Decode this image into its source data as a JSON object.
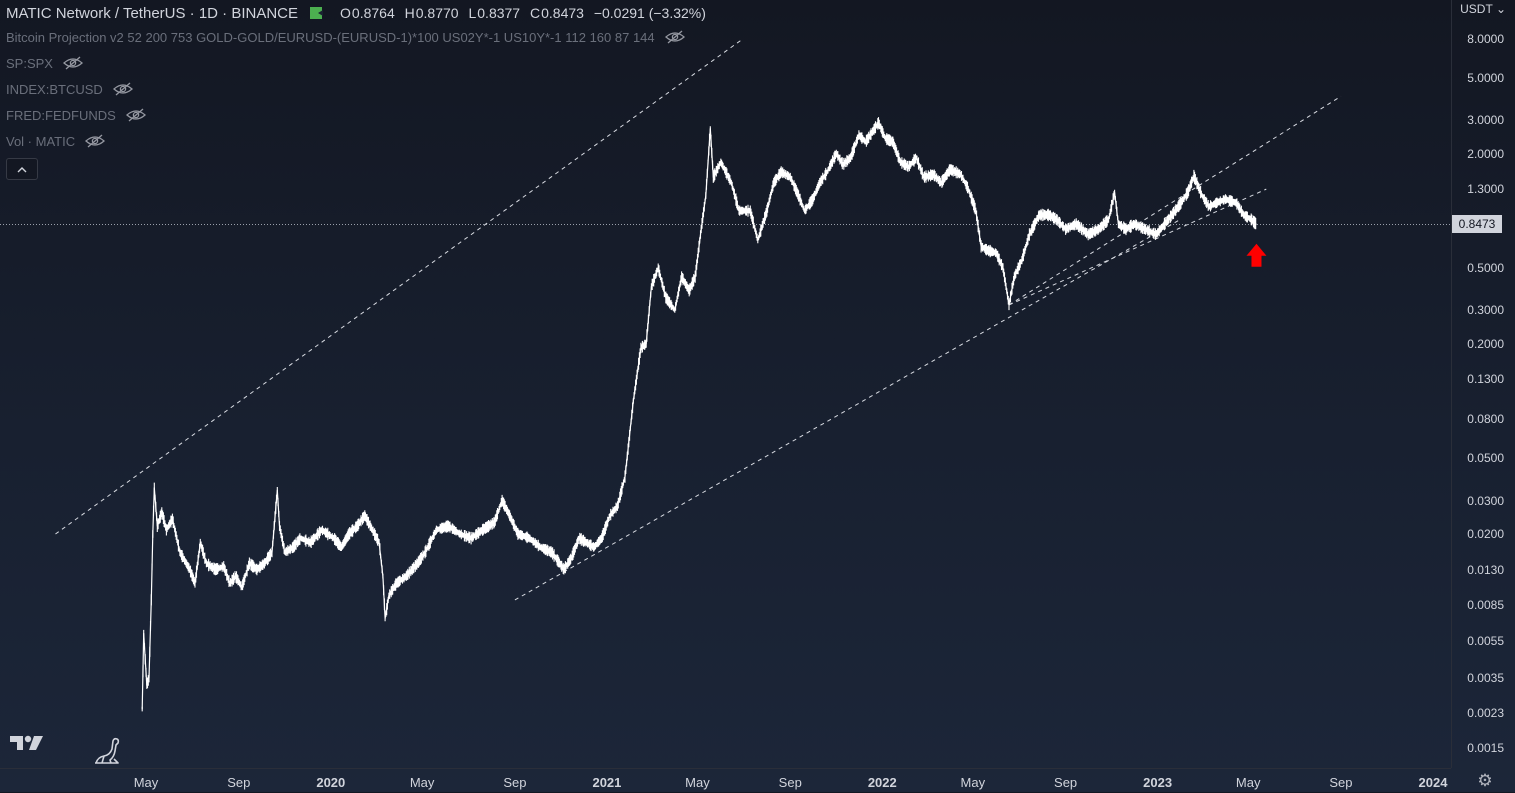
{
  "header": {
    "symbol": "MATIC Network / TetherUS · 1D · BINANCE",
    "ohlc": [
      {
        "key": "O",
        "value": "0.8764"
      },
      {
        "key": "H",
        "value": "0.8770"
      },
      {
        "key": "L",
        "value": "0.8377"
      },
      {
        "key": "C",
        "value": "0.8473"
      }
    ],
    "change": "−0.0291 (−3.32%)",
    "market_open_color": "#4caf50"
  },
  "indicators": [
    "Bitcoin Projection v2 52 200 753 GOLD-GOLD/EURUSD-(EURUSD-1)*100 US02Y*-1 US10Y*-1 112 160 87 144",
    "SP:SPX",
    "INDEX:BTCUSD",
    "FRED:FEDFUNDS",
    "Vol · MATIC"
  ],
  "collapse_icon": "^",
  "currency": "USDT",
  "last_price": "0.8473",
  "settings_icon": "⚙",
  "chart_data": {
    "type": "line",
    "scale": "log",
    "ylim": [
      0.0012,
      10
    ],
    "x_ticks": [
      {
        "label": "May",
        "date": "2019-05-01",
        "year": false
      },
      {
        "label": "Sep",
        "date": "2019-09-01",
        "year": false
      },
      {
        "label": "2020",
        "date": "2020-01-01",
        "year": true
      },
      {
        "label": "May",
        "date": "2020-05-01",
        "year": false
      },
      {
        "label": "Sep",
        "date": "2020-09-01",
        "year": false
      },
      {
        "label": "2021",
        "date": "2021-01-01",
        "year": true
      },
      {
        "label": "May",
        "date": "2021-05-01",
        "year": false
      },
      {
        "label": "Sep",
        "date": "2021-09-01",
        "year": false
      },
      {
        "label": "2022",
        "date": "2022-01-01",
        "year": true
      },
      {
        "label": "May",
        "date": "2022-05-01",
        "year": false
      },
      {
        "label": "Sep",
        "date": "2022-09-01",
        "year": false
      },
      {
        "label": "2023",
        "date": "2023-01-01",
        "year": true
      },
      {
        "label": "May",
        "date": "2023-05-01",
        "year": false
      },
      {
        "label": "Sep",
        "date": "2023-09-01",
        "year": false
      },
      {
        "label": "2024",
        "date": "2024-01-01",
        "year": true
      }
    ],
    "y_ticks": [
      {
        "label": "8.0000",
        "value": 8
      },
      {
        "label": "5.0000",
        "value": 5
      },
      {
        "label": "3.0000",
        "value": 3
      },
      {
        "label": "2.0000",
        "value": 2
      },
      {
        "label": "1.3000",
        "value": 1.3
      },
      {
        "label": "0.5000",
        "value": 0.5
      },
      {
        "label": "0.3000",
        "value": 0.3
      },
      {
        "label": "0.2000",
        "value": 0.2
      },
      {
        "label": "0.1300",
        "value": 0.13
      },
      {
        "label": "0.0800",
        "value": 0.08
      },
      {
        "label": "0.0500",
        "value": 0.05
      },
      {
        "label": "0.0300",
        "value": 0.03
      },
      {
        "label": "0.0200",
        "value": 0.02
      },
      {
        "label": "0.0130",
        "value": 0.013
      },
      {
        "label": "0.0085",
        "value": 0.0085
      },
      {
        "label": "0.0055",
        "value": 0.0055
      },
      {
        "label": "0.0035",
        "value": 0.0035
      },
      {
        "label": "0.0023",
        "value": 0.0023
      },
      {
        "label": "0.0015",
        "value": 0.0015
      }
    ],
    "series": [
      {
        "points": [
          [
            "2019-04-26",
            0.0024
          ],
          [
            "2019-04-28",
            0.006
          ],
          [
            "2019-05-02",
            0.0032
          ],
          [
            "2019-05-05",
            0.0035
          ],
          [
            "2019-05-08",
            0.009
          ],
          [
            "2019-05-10",
            0.02
          ],
          [
            "2019-05-12",
            0.035
          ],
          [
            "2019-05-16",
            0.022
          ],
          [
            "2019-05-22",
            0.026
          ],
          [
            "2019-05-28",
            0.021
          ],
          [
            "2019-06-05",
            0.024
          ],
          [
            "2019-06-15",
            0.016
          ],
          [
            "2019-06-28",
            0.013
          ],
          [
            "2019-07-05",
            0.011
          ],
          [
            "2019-07-12",
            0.018
          ],
          [
            "2019-07-20",
            0.014
          ],
          [
            "2019-08-01",
            0.013
          ],
          [
            "2019-08-12",
            0.0135
          ],
          [
            "2019-08-20",
            0.011
          ],
          [
            "2019-08-28",
            0.012
          ],
          [
            "2019-09-05",
            0.0105
          ],
          [
            "2019-09-15",
            0.014
          ],
          [
            "2019-09-25",
            0.013
          ],
          [
            "2019-10-05",
            0.014
          ],
          [
            "2019-10-15",
            0.016
          ],
          [
            "2019-10-22",
            0.034
          ],
          [
            "2019-10-25",
            0.022
          ],
          [
            "2019-11-01",
            0.016
          ],
          [
            "2019-11-12",
            0.017
          ],
          [
            "2019-11-22",
            0.019
          ],
          [
            "2019-12-05",
            0.018
          ],
          [
            "2019-12-20",
            0.021
          ],
          [
            "2020-01-05",
            0.019
          ],
          [
            "2020-01-15",
            0.017
          ],
          [
            "2020-01-25",
            0.02
          ],
          [
            "2020-02-05",
            0.022
          ],
          [
            "2020-02-15",
            0.025
          ],
          [
            "2020-02-25",
            0.021
          ],
          [
            "2020-03-05",
            0.018
          ],
          [
            "2020-03-10",
            0.012
          ],
          [
            "2020-03-13",
            0.0072
          ],
          [
            "2020-03-18",
            0.0095
          ],
          [
            "2020-03-28",
            0.011
          ],
          [
            "2020-04-10",
            0.012
          ],
          [
            "2020-04-25",
            0.014
          ],
          [
            "2020-05-05",
            0.016
          ],
          [
            "2020-05-20",
            0.021
          ],
          [
            "2020-06-05",
            0.022
          ],
          [
            "2020-06-20",
            0.02
          ],
          [
            "2020-07-05",
            0.019
          ],
          [
            "2020-07-20",
            0.021
          ],
          [
            "2020-08-05",
            0.023
          ],
          [
            "2020-08-15",
            0.03
          ],
          [
            "2020-08-25",
            0.025
          ],
          [
            "2020-09-05",
            0.02
          ],
          [
            "2020-09-20",
            0.019
          ],
          [
            "2020-10-05",
            0.017
          ],
          [
            "2020-10-20",
            0.016
          ],
          [
            "2020-11-05",
            0.013
          ],
          [
            "2020-11-15",
            0.015
          ],
          [
            "2020-11-25",
            0.019
          ],
          [
            "2020-12-05",
            0.018
          ],
          [
            "2020-12-15",
            0.017
          ],
          [
            "2020-12-25",
            0.019
          ],
          [
            "2021-01-05",
            0.025
          ],
          [
            "2021-01-15",
            0.028
          ],
          [
            "2021-01-25",
            0.04
          ],
          [
            "2021-02-05",
            0.1
          ],
          [
            "2021-02-15",
            0.19
          ],
          [
            "2021-02-22",
            0.2
          ],
          [
            "2021-03-01",
            0.4
          ],
          [
            "2021-03-10",
            0.5
          ],
          [
            "2021-03-20",
            0.35
          ],
          [
            "2021-04-01",
            0.3
          ],
          [
            "2021-04-10",
            0.45
          ],
          [
            "2021-04-20",
            0.38
          ],
          [
            "2021-04-28",
            0.45
          ],
          [
            "2021-05-05",
            0.75
          ],
          [
            "2021-05-12",
            1.2
          ],
          [
            "2021-05-18",
            2.7
          ],
          [
            "2021-05-22",
            1.5
          ],
          [
            "2021-06-01",
            1.8
          ],
          [
            "2021-06-15",
            1.4
          ],
          [
            "2021-06-25",
            1.0
          ],
          [
            "2021-07-10",
            1.0
          ],
          [
            "2021-07-20",
            0.7
          ],
          [
            "2021-08-01",
            1.0
          ],
          [
            "2021-08-10",
            1.4
          ],
          [
            "2021-08-20",
            1.6
          ],
          [
            "2021-09-01",
            1.5
          ],
          [
            "2021-09-10",
            1.25
          ],
          [
            "2021-09-20",
            1.0
          ],
          [
            "2021-10-01",
            1.15
          ],
          [
            "2021-10-10",
            1.4
          ],
          [
            "2021-10-20",
            1.6
          ],
          [
            "2021-11-01",
            2.0
          ],
          [
            "2021-11-10",
            1.75
          ],
          [
            "2021-11-20",
            1.9
          ],
          [
            "2021-12-01",
            2.5
          ],
          [
            "2021-12-10",
            2.3
          ],
          [
            "2021-12-27",
            2.9
          ],
          [
            "2022-01-05",
            2.4
          ],
          [
            "2022-01-15",
            2.3
          ],
          [
            "2022-01-25",
            1.8
          ],
          [
            "2022-02-05",
            1.7
          ],
          [
            "2022-02-15",
            1.9
          ],
          [
            "2022-02-25",
            1.5
          ],
          [
            "2022-03-10",
            1.55
          ],
          [
            "2022-03-20",
            1.4
          ],
          [
            "2022-04-01",
            1.65
          ],
          [
            "2022-04-15",
            1.55
          ],
          [
            "2022-04-25",
            1.3
          ],
          [
            "2022-05-05",
            1.0
          ],
          [
            "2022-05-12",
            0.65
          ],
          [
            "2022-05-20",
            0.62
          ],
          [
            "2022-06-01",
            0.6
          ],
          [
            "2022-06-10",
            0.5
          ],
          [
            "2022-06-18",
            0.32
          ],
          [
            "2022-06-25",
            0.45
          ],
          [
            "2022-07-05",
            0.55
          ],
          [
            "2022-07-15",
            0.75
          ],
          [
            "2022-07-28",
            0.95
          ],
          [
            "2022-08-10",
            0.95
          ],
          [
            "2022-08-20",
            0.9
          ],
          [
            "2022-09-01",
            0.8
          ],
          [
            "2022-09-15",
            0.85
          ],
          [
            "2022-10-01",
            0.75
          ],
          [
            "2022-10-15",
            0.8
          ],
          [
            "2022-10-28",
            0.9
          ],
          [
            "2022-11-05",
            1.25
          ],
          [
            "2022-11-10",
            0.85
          ],
          [
            "2022-11-20",
            0.8
          ],
          [
            "2022-12-01",
            0.85
          ],
          [
            "2022-12-15",
            0.8
          ],
          [
            "2022-12-30",
            0.75
          ],
          [
            "2023-01-10",
            0.85
          ],
          [
            "2023-01-20",
            0.95
          ],
          [
            "2023-02-01",
            1.1
          ],
          [
            "2023-02-10",
            1.25
          ],
          [
            "2023-02-18",
            1.52
          ],
          [
            "2023-03-01",
            1.2
          ],
          [
            "2023-03-10",
            1.05
          ],
          [
            "2023-03-20",
            1.1
          ],
          [
            "2023-04-01",
            1.15
          ],
          [
            "2023-04-15",
            1.1
          ],
          [
            "2023-04-25",
            0.95
          ],
          [
            "2023-05-05",
            0.9
          ],
          [
            "2023-05-12",
            0.8473
          ]
        ]
      }
    ],
    "trendlines": [
      {
        "from": [
          "2019-01-01",
          0.02
        ],
        "to": [
          "2021-06-30",
          8.0
        ]
      },
      {
        "from": [
          "2020-09-01",
          0.009
        ],
        "to": [
          "2023-01-31",
          0.9
        ]
      },
      {
        "from": [
          "2022-06-18",
          0.32
        ],
        "to": [
          "2023-05-25",
          1.3
        ]
      },
      {
        "from": [
          "2022-06-18",
          0.32
        ],
        "to": [
          "2023-09-01",
          4.0
        ]
      }
    ],
    "annotations": [
      {
        "type": "arrow-up",
        "date": "2023-05-12",
        "value": 0.58,
        "color": "#ff0000"
      }
    ],
    "last_value": 0.8473
  }
}
